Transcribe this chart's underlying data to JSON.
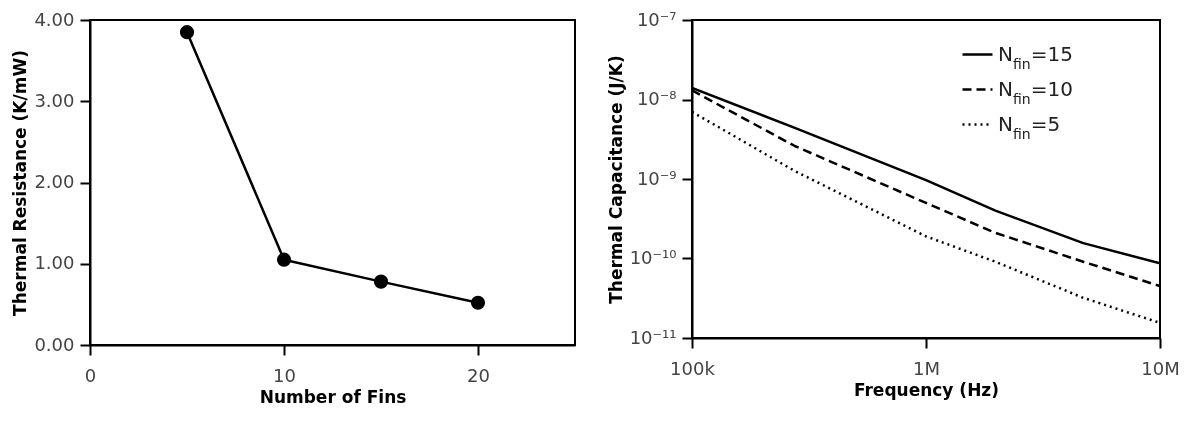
{
  "chart_data": [
    {
      "type": "line",
      "xlabel": "Number of Fins",
      "ylabel": "Thermal Resistance (K/mW)",
      "x": [
        5,
        10,
        15,
        20
      ],
      "values": [
        3.85,
        1.05,
        0.78,
        0.52
      ],
      "color": "#000000",
      "marker": "circle",
      "xlim": [
        0,
        25
      ],
      "xticks": [
        0,
        10,
        20
      ],
      "ylim": [
        0,
        4
      ],
      "yticks": [
        {
          "value": 0,
          "label": "0.00"
        },
        {
          "value": 1,
          "label": "1.00"
        },
        {
          "value": 2,
          "label": "2.00"
        },
        {
          "value": 3,
          "label": "3.00"
        },
        {
          "value": 4,
          "label": "4.00"
        }
      ],
      "grid": false
    },
    {
      "type": "line",
      "xlabel": "Frequency (Hz)",
      "ylabel": "Thermal Capacitance (J/K)",
      "log": "xy",
      "xlim": [
        100000,
        10000000
      ],
      "xticks": [
        {
          "value": 100000,
          "label": "100k"
        },
        {
          "value": 1000000,
          "label": "1M"
        },
        {
          "value": 10000000,
          "label": "10M"
        }
      ],
      "ylim": [
        1e-11,
        1e-07
      ],
      "yticks": [
        {
          "value": 1e-11,
          "label": "10⁻¹¹"
        },
        {
          "value": 1e-10,
          "label": "10⁻¹⁰"
        },
        {
          "value": 1e-09,
          "label": "10⁻⁹"
        },
        {
          "value": 1e-08,
          "label": "10⁻⁸"
        },
        {
          "value": 1e-07,
          "label": "10⁻⁷"
        }
      ],
      "grid": false,
      "legend": "top right",
      "series": [
        {
          "name": "N$_{fin}$=15",
          "color": "#000000",
          "line_style": "solid",
          "x": [
            100000,
            275000,
            1000000,
            1980000,
            4700000,
            10000000
          ],
          "values": [
            1.4e-08,
            4.4e-09,
            9.7e-10,
            4e-10,
            1.56e-10,
            8.7e-11
          ]
        },
        {
          "name": "N$_{fin}$=10",
          "color": "#000000",
          "line_style": "dashed",
          "x": [
            100000,
            275000,
            1000000,
            1980000,
            4700000,
            10000000
          ],
          "values": [
            1.3e-08,
            2.6e-09,
            5e-10,
            2.1e-10,
            9.1e-11,
            4.5e-11
          ]
        },
        {
          "name": "N$_{fin}$=5",
          "color": "#000000",
          "line_style": "dotted",
          "x": [
            100000,
            275000,
            1000000,
            1980000,
            4700000,
            10000000
          ],
          "values": [
            7e-09,
            1.26e-09,
            1.9e-10,
            9.1e-11,
            3.2e-11,
            1.55e-11
          ]
        }
      ]
    }
  ]
}
